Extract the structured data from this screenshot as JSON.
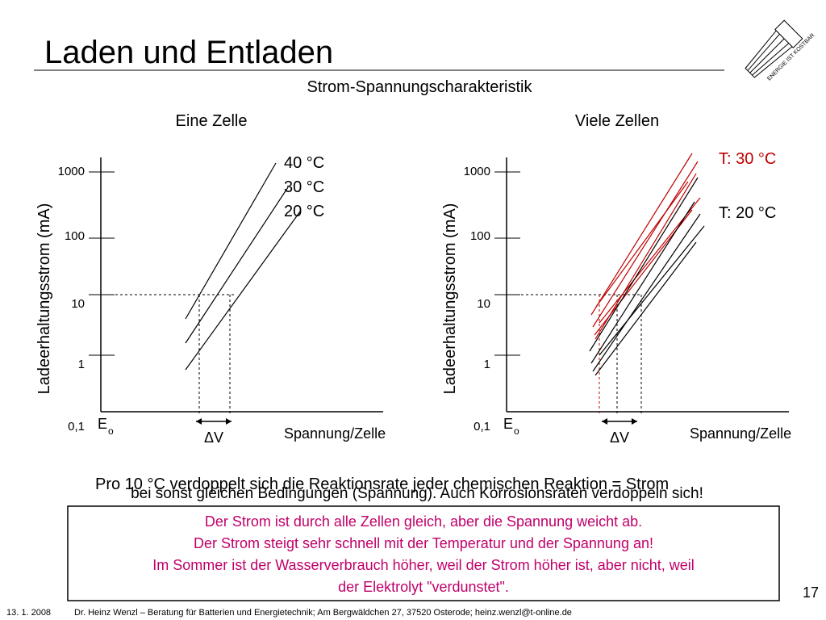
{
  "header": {
    "title": "Laden und Entladen",
    "subtitle": "Strom-Spannungscharakteristik"
  },
  "panels": [
    {
      "heading": "Eine Zelle",
      "ylabel": "Ladeerhaltungsstrom (mA)",
      "yticks": [
        "1000",
        "100",
        "10",
        "1",
        "0,1"
      ],
      "xlabel": "Spannung/Zelle",
      "origin": "E",
      "origin_sub": "o",
      "delta": "ΔV",
      "labels": [
        "40 °C",
        "30 °C",
        "20 °C"
      ]
    },
    {
      "heading": "Viele Zellen",
      "ylabel": "Ladeerhaltungsstrom (mA)",
      "yticks": [
        "1000",
        "100",
        "10",
        "1",
        "0,1"
      ],
      "xlabel": "Spannung/Zelle",
      "origin": "E",
      "origin_sub": "o",
      "delta": "ΔV",
      "labels": [
        "T: 30 °C",
        "T: 20 °C"
      ]
    }
  ],
  "body": [
    "Pro 10 °C verdoppelt sich die Reaktionsrate jeder chemischen Reaktion = Strom",
    "bei sonst gleichen Bedingungen (Spannung). Auch Korrosionsraten verdoppeln sich!"
  ],
  "box": [
    "Der Strom ist durch alle Zellen gleich, aber die Spannung weicht ab.",
    "Der Strom steigt sehr schnell mit der Temperatur und der Spannung an!",
    "Im Sommer ist der Wasserverbrauch höher, weil der Strom höher ist, aber nicht, weil",
    "der Elektrolyt \"verdunstet\"."
  ],
  "page_number": "17",
  "footer": {
    "date": "13. 1. 2008",
    "text": "Dr. Heinz Wenzl – Beratung für Batterien und Energietechnik; Am Bergwäldchen 27, 37520 Osterode; heinz.wenzl@t-online.de"
  },
  "logo": "ENERGIE IST KOSTBAR"
}
